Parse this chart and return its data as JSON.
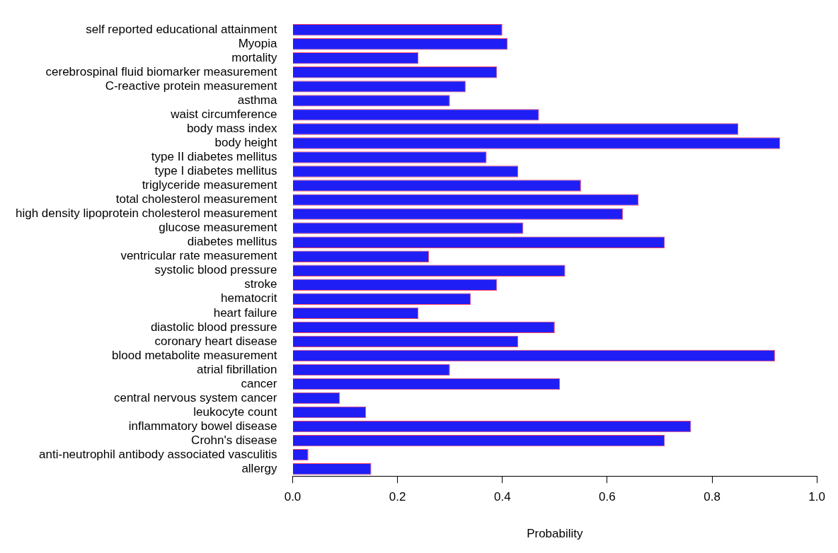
{
  "chart_data": {
    "type": "bar",
    "orientation": "horizontal",
    "xlabel": "Probability",
    "categories": [
      "self reported educational attainment",
      "Myopia",
      "mortality",
      "cerebrospinal fluid biomarker measurement",
      "C-reactive protein measurement",
      "asthma",
      "waist circumference",
      "body mass index",
      "body height",
      "type II diabetes mellitus",
      "type I diabetes mellitus",
      "triglyceride measurement",
      "total cholesterol measurement",
      "high density lipoprotein cholesterol measurement",
      "glucose measurement",
      "diabetes mellitus",
      "ventricular rate measurement",
      "systolic blood pressure",
      "stroke",
      "hematocrit",
      "heart failure",
      "diastolic blood pressure",
      "coronary heart disease",
      "blood metabolite measurement",
      "atrial fibrillation",
      "cancer",
      "central nervous system cancer",
      "leukocyte count",
      "inflammatory bowel disease",
      "Crohn's disease",
      "anti-neutrophil antibody associated vasculitis",
      "allergy"
    ],
    "series": [
      {
        "color": "#1f1ff5",
        "values": [
          0.4,
          0.41,
          0.24,
          0.39,
          0.33,
          0.3,
          0.47,
          0.85,
          0.93,
          0.37,
          0.43,
          0.55,
          0.66,
          0.63,
          0.44,
          0.71,
          0.26,
          0.52,
          0.39,
          0.34,
          0.24,
          0.5,
          0.43,
          0.92,
          0.3,
          0.51,
          0.09,
          0.14,
          0.76,
          0.71,
          0.03,
          0.15
        ]
      }
    ],
    "xlim": [
      0,
      1
    ],
    "xticks": [
      {
        "value": 0,
        "label": "0.0"
      },
      {
        "value": 0.2,
        "label": "0.2"
      },
      {
        "value": 0.4,
        "label": "0.4"
      },
      {
        "value": 0.6,
        "label": "0.6"
      },
      {
        "value": 0.8,
        "label": "0.8"
      },
      {
        "value": 1,
        "label": "1.0"
      }
    ],
    "grid": false,
    "legend": false
  }
}
